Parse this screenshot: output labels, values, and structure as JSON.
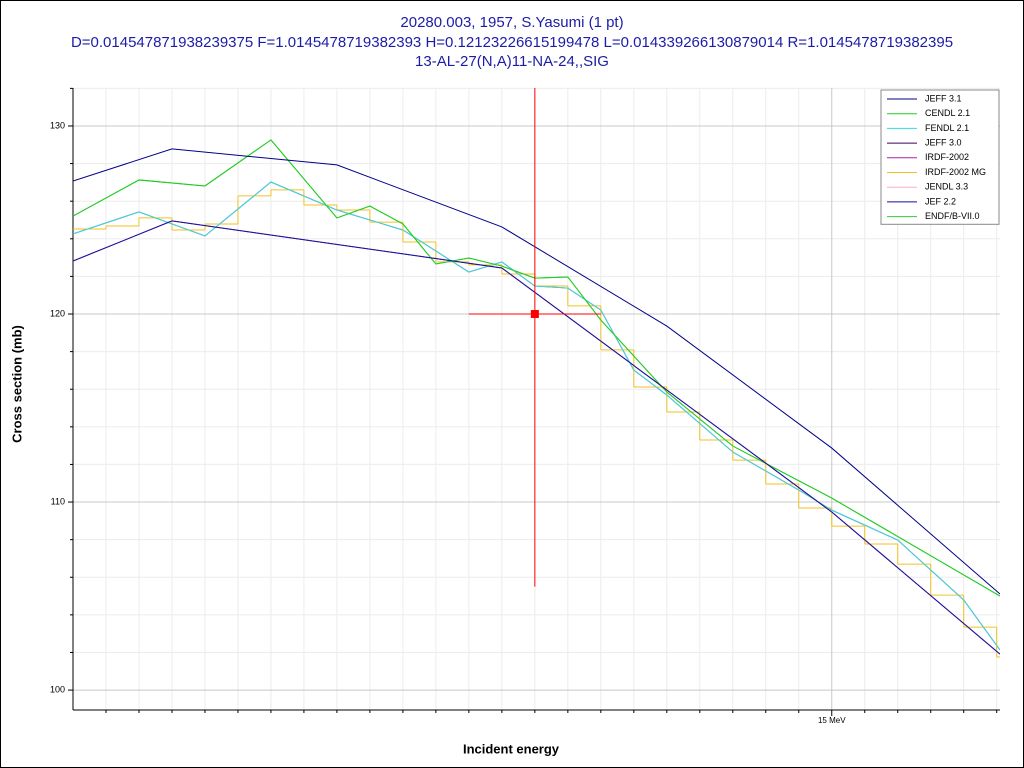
{
  "chart_data": {
    "type": "line",
    "title": [
      "20280.003, 1957, S.Yasumi (1 pt)",
      "D=0.014547871938239375 F=1.0145478719382393 H=0.12123226615199478 L=0.014339266130879014 R=1.0145478719382395",
      "13-AL-27(N,A)11-NA-24,,SIG"
    ],
    "xlabel": "Incident energy",
    "ylabel": "Cross section (mb)",
    "xlim": [
      12.7,
      15.51
    ],
    "ylim": [
      98.94,
      132.02
    ],
    "xticks": [
      {
        "value": 15,
        "label": "15 MeV"
      }
    ],
    "yticks": [
      100,
      110,
      120,
      130
    ],
    "xminorticks": [
      12.8,
      12.9,
      13.0,
      13.1,
      13.2,
      13.3,
      13.4,
      13.5,
      13.6,
      13.7,
      13.8,
      13.9,
      14.0,
      14.1,
      14.2,
      14.3,
      14.4,
      14.5,
      14.6,
      14.7,
      14.8,
      14.9,
      15.1,
      15.2,
      15.3,
      15.4,
      15.5
    ],
    "yminorticks": [
      102,
      104,
      106,
      108,
      112,
      114,
      116,
      118,
      122,
      124,
      126,
      128,
      132
    ],
    "grid": true,
    "legend": "upper right",
    "series": [
      {
        "name": "JEFF 3.1",
        "color": "#00008b",
        "x": [
          12.7,
          13.0,
          13.5,
          14.0,
          14.5,
          15.0,
          15.51
        ],
        "values": [
          127.07,
          128.78,
          127.93,
          124.63,
          119.36,
          112.87,
          105.11
        ]
      },
      {
        "name": "CENDL 2.1",
        "color": "#22cc22",
        "x": [
          12.7,
          12.9,
          13.1,
          13.3,
          13.5,
          13.6,
          13.7,
          13.8,
          13.9,
          14.0,
          14.1,
          14.2,
          14.3,
          14.5,
          14.7,
          15.0,
          15.51
        ],
        "values": [
          125.21,
          127.13,
          126.81,
          129.26,
          125.11,
          125.74,
          124.79,
          122.66,
          122.98,
          122.55,
          121.91,
          121.97,
          119.68,
          115.85,
          112.98,
          110.21,
          105.0
        ]
      },
      {
        "name": "FENDL 2.1",
        "color": "#33dddd",
        "x": [
          12.7,
          12.9,
          13.1,
          13.3,
          13.5,
          13.7,
          13.9,
          14.0,
          14.1,
          14.2,
          14.3,
          14.4,
          14.5,
          14.7,
          14.9,
          15.0,
          15.2,
          15.4,
          15.51
        ],
        "values": [
          124.26,
          125.43,
          124.15,
          127.02,
          125.53,
          124.47,
          122.23,
          122.77,
          121.49,
          121.38,
          120.21,
          117.02,
          115.69,
          112.66,
          110.64,
          109.57,
          107.98,
          104.79,
          102.13
        ]
      },
      {
        "name": "JEFF 3.0",
        "color": "#3a0060",
        "x": [
          12.7,
          13.0,
          14.0,
          14.5,
          15.0,
          15.51
        ],
        "values": [
          122.82,
          124.95,
          122.45,
          115.96,
          109.47,
          101.91
        ]
      },
      {
        "name": "IRDF-2002",
        "color": "#aa22aa",
        "x": [
          12.7,
          12.9,
          13.1,
          13.3,
          13.5,
          13.7,
          13.9,
          14.0,
          14.1,
          14.2,
          14.3,
          14.4,
          14.5,
          14.7,
          14.9,
          15.0,
          15.2,
          15.4,
          15.51
        ],
        "values": [
          124.26,
          125.43,
          124.15,
          127.02,
          125.53,
          124.47,
          122.23,
          122.77,
          121.49,
          121.38,
          120.21,
          117.02,
          115.69,
          112.66,
          110.64,
          109.57,
          107.98,
          104.79,
          102.13
        ]
      },
      {
        "name": "IRDF-2002 MG",
        "color": "#f0c020",
        "step": true,
        "bins": [
          12.7,
          12.8,
          12.9,
          13.0,
          13.1,
          13.2,
          13.3,
          13.4,
          13.5,
          13.6,
          13.7,
          13.8,
          13.9,
          14.0,
          14.1,
          14.2,
          14.3,
          14.4,
          14.5,
          14.6,
          14.7,
          14.8,
          14.9,
          15.0,
          15.1,
          15.2,
          15.3,
          15.4,
          15.5,
          15.51
        ],
        "values": [
          124.52,
          124.68,
          125.11,
          124.47,
          124.79,
          126.28,
          126.6,
          125.8,
          125.53,
          124.89,
          123.83,
          122.77,
          122.61,
          122.13,
          121.49,
          120.43,
          118.09,
          116.12,
          114.79,
          113.3,
          112.23,
          110.96,
          109.68,
          108.72,
          107.77,
          106.7,
          105.05,
          103.35,
          101.76
        ]
      },
      {
        "name": "JENDL 3.3",
        "color": "#ffaacc",
        "x": [
          12.7,
          13.0,
          14.0,
          14.5,
          15.0,
          15.51
        ],
        "values": [
          122.82,
          124.95,
          122.45,
          115.96,
          109.47,
          101.91
        ]
      },
      {
        "name": "JEF 2.2",
        "color": "#1010a0",
        "x": [
          12.7,
          13.0,
          14.0,
          14.5,
          15.0,
          15.51
        ],
        "values": [
          122.82,
          124.95,
          122.45,
          115.96,
          109.47,
          101.91
        ]
      },
      {
        "name": "ENDF/B-VII.0",
        "color": "#33cc33",
        "x": [
          12.7,
          12.9,
          13.1,
          13.3,
          13.5,
          13.6,
          13.7,
          13.8,
          13.9,
          14.0,
          14.1,
          14.2,
          14.3,
          14.5,
          14.7,
          15.0,
          15.51
        ],
        "values": [
          125.21,
          127.13,
          126.81,
          129.26,
          125.11,
          125.74,
          124.79,
          122.66,
          122.98,
          122.55,
          121.91,
          121.97,
          119.68,
          115.85,
          112.98,
          110.21,
          105.0
        ]
      }
    ],
    "measurement": {
      "x": 14.1,
      "y": 120,
      "xerr": 0.2,
      "yerr": 14.5,
      "color": "#ff0000"
    }
  }
}
